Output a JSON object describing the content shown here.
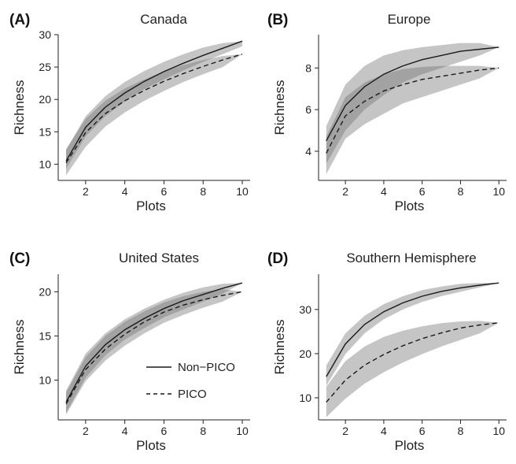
{
  "chart_data": [
    {
      "type": "line",
      "letter": "(A)",
      "title": "Canada",
      "xlabel": "Plots",
      "ylabel": "Richness",
      "xlim": [
        0.6,
        10.4
      ],
      "ylim": [
        7.5,
        30
      ],
      "xticks": [
        2,
        4,
        6,
        8,
        10
      ],
      "yticks": [
        10,
        15,
        20,
        25,
        30
      ],
      "x": [
        1,
        2,
        3,
        4,
        5,
        6,
        7,
        8,
        9,
        10
      ],
      "series": [
        {
          "name": "Non-PICO",
          "dash": "solid",
          "values": [
            10.5,
            15.7,
            18.8,
            21.0,
            22.8,
            24.3,
            25.6,
            26.8,
            27.9,
            29.0
          ],
          "lower": [
            9.3,
            14.3,
            17.4,
            19.7,
            21.6,
            23.1,
            24.5,
            25.8,
            27.0,
            28.2
          ],
          "upper": [
            12.2,
            17.4,
            20.5,
            22.7,
            24.4,
            25.8,
            27.0,
            28.0,
            28.7,
            29.0
          ]
        },
        {
          "name": "PICO",
          "dash": "dashed",
          "values": [
            10.2,
            14.9,
            17.8,
            19.8,
            21.4,
            22.8,
            24.0,
            25.1,
            26.1,
            27.0
          ],
          "lower": [
            8.3,
            12.7,
            15.8,
            18.0,
            19.8,
            21.3,
            22.7,
            23.9,
            25.0,
            27.0
          ],
          "upper": [
            12.3,
            17.0,
            19.8,
            21.7,
            23.1,
            24.3,
            25.3,
            26.1,
            26.7,
            27.0
          ]
        }
      ]
    },
    {
      "type": "line",
      "letter": "(B)",
      "title": "Europe",
      "xlabel": "Plots",
      "ylabel": "Richness",
      "xlim": [
        0.6,
        10.4
      ],
      "ylim": [
        2.6,
        9.6
      ],
      "xticks": [
        2,
        4,
        6,
        8,
        10
      ],
      "yticks": [
        4,
        6,
        8
      ],
      "x": [
        1,
        2,
        3,
        4,
        5,
        6,
        7,
        8,
        9,
        10
      ],
      "series": [
        {
          "name": "Non-PICO",
          "dash": "solid",
          "values": [
            4.5,
            6.2,
            7.1,
            7.7,
            8.1,
            8.4,
            8.6,
            8.8,
            8.9,
            9.0
          ],
          "lower": [
            3.4,
            5.0,
            6.0,
            6.7,
            7.3,
            7.7,
            8.0,
            8.3,
            8.6,
            9.0
          ],
          "upper": [
            5.2,
            7.2,
            8.1,
            8.6,
            8.85,
            9.0,
            9.1,
            9.2,
            9.2,
            9.0
          ]
        },
        {
          "name": "PICO",
          "dash": "dashed",
          "values": [
            3.9,
            5.7,
            6.4,
            6.9,
            7.2,
            7.45,
            7.6,
            7.75,
            7.9,
            8.0
          ],
          "lower": [
            2.9,
            4.6,
            5.3,
            5.8,
            6.3,
            6.6,
            6.9,
            7.2,
            7.5,
            8.0
          ],
          "upper": [
            4.7,
            6.6,
            7.3,
            7.7,
            7.95,
            8.05,
            8.1,
            8.1,
            8.1,
            8.0
          ]
        }
      ]
    },
    {
      "type": "line",
      "letter": "(C)",
      "title": "United States",
      "xlabel": "Plots",
      "ylabel": "Richness",
      "xlim": [
        0.6,
        10.4
      ],
      "ylim": [
        5.5,
        22
      ],
      "xticks": [
        2,
        4,
        6,
        8,
        10
      ],
      "yticks": [
        10,
        15,
        20
      ],
      "x": [
        1,
        2,
        3,
        4,
        5,
        6,
        7,
        8,
        9,
        10
      ],
      "series": [
        {
          "name": "Non-PICO",
          "dash": "solid",
          "values": [
            7.5,
            11.6,
            14.0,
            15.7,
            17.0,
            18.1,
            19.0,
            19.7,
            20.4,
            21.0
          ],
          "lower": [
            6.3,
            10.3,
            12.8,
            14.6,
            15.9,
            17.1,
            18.0,
            18.9,
            19.8,
            21.0
          ],
          "upper": [
            8.8,
            13.0,
            15.3,
            16.9,
            18.1,
            19.1,
            19.9,
            20.5,
            20.9,
            21.0
          ]
        },
        {
          "name": "PICO",
          "dash": "dashed",
          "values": [
            7.3,
            11.2,
            13.5,
            15.2,
            16.6,
            17.7,
            18.5,
            19.1,
            19.6,
            20.0
          ],
          "lower": [
            6.1,
            9.9,
            12.2,
            13.9,
            15.3,
            16.5,
            17.4,
            18.2,
            18.9,
            20.0
          ],
          "upper": [
            8.6,
            12.6,
            15.0,
            16.6,
            17.8,
            18.8,
            19.5,
            20.0,
            20.3,
            20.0
          ]
        }
      ]
    },
    {
      "type": "line",
      "letter": "(D)",
      "title": "Southern Hemisphere",
      "xlabel": "Plots",
      "ylabel": "Richness",
      "xlim": [
        0.6,
        10.4
      ],
      "ylim": [
        5,
        38
      ],
      "xticks": [
        2,
        4,
        6,
        8,
        10
      ],
      "yticks": [
        10,
        20,
        30
      ],
      "x": [
        1,
        2,
        3,
        4,
        5,
        6,
        7,
        8,
        9,
        10
      ],
      "series": [
        {
          "name": "Non-PICO",
          "dash": "solid",
          "values": [
            14.8,
            22.2,
            26.6,
            29.5,
            31.5,
            33.0,
            34.1,
            34.9,
            35.5,
            36.0
          ],
          "lower": [
            12.7,
            19.9,
            24.6,
            27.8,
            30.0,
            31.7,
            33.0,
            34.0,
            35.0,
            36.0
          ],
          "upper": [
            17.3,
            24.6,
            28.6,
            31.2,
            33.0,
            34.4,
            35.2,
            35.8,
            36.0,
            36.0
          ]
        },
        {
          "name": "PICO",
          "dash": "dashed",
          "values": [
            9.0,
            14.0,
            17.4,
            19.8,
            21.8,
            23.4,
            24.7,
            25.8,
            26.5,
            27.0
          ],
          "lower": [
            5.6,
            9.8,
            13.2,
            15.8,
            18.0,
            19.9,
            21.6,
            23.1,
            24.6,
            27.0
          ],
          "upper": [
            12.5,
            18.3,
            21.6,
            23.8,
            25.2,
            26.2,
            26.9,
            27.3,
            27.4,
            27.0
          ]
        }
      ]
    }
  ],
  "legend": {
    "items": [
      {
        "label": "Non−PICO",
        "dash": "solid"
      },
      {
        "label": "PICO",
        "dash": "dashed"
      }
    ]
  }
}
